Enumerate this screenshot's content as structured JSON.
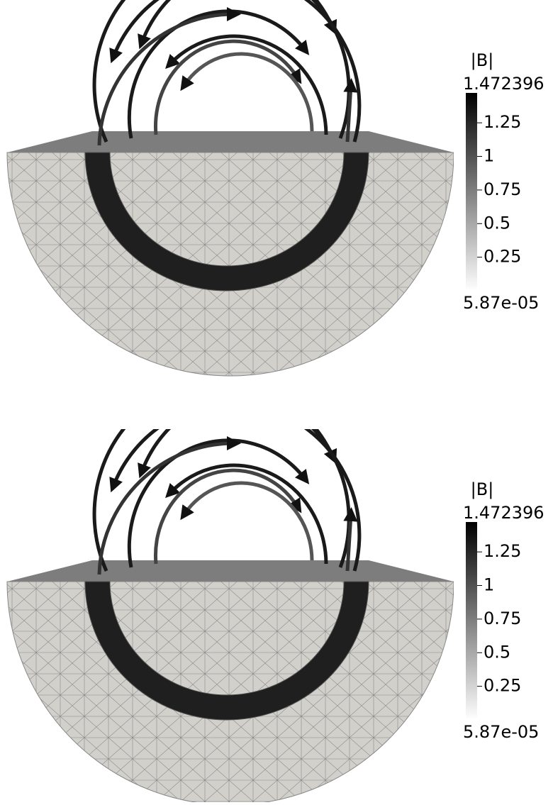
{
  "panels": [
    {
      "colorbar": {
        "title": "|B|",
        "range": [
          {
            "value": 5.87e-05,
            "label": "5.87e-05"
          },
          1.472396
        ],
        "ticks": [
          1.25,
          1,
          0.75,
          0.5,
          0.25
        ]
      }
    },
    {
      "colorbar": {
        "title": "|B|",
        "range": [
          {
            "value": 5.87e-05,
            "label": "5.87e-05"
          },
          1.472396
        ],
        "ticks": [
          1.25,
          1,
          0.75,
          0.5,
          0.25
        ]
      }
    }
  ]
}
